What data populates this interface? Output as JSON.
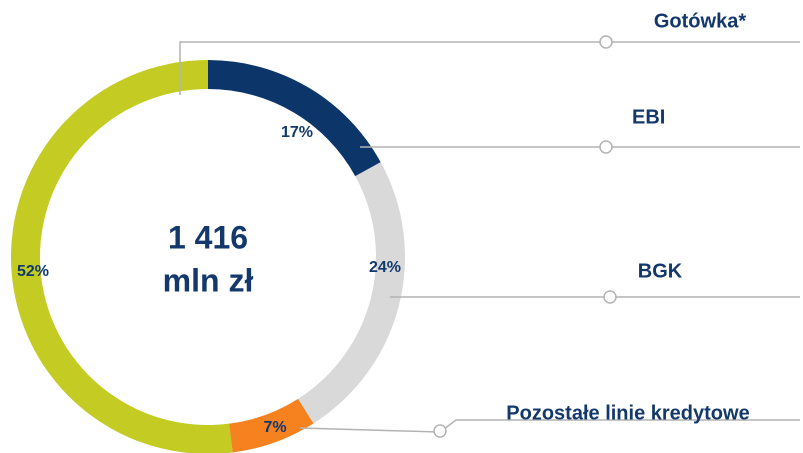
{
  "chart_data": {
    "type": "donut",
    "categories": [
      "EBI",
      "BGK",
      "Pozostałe linie kredytowe",
      "Gotówka*"
    ],
    "values": [
      17,
      24,
      7,
      52
    ],
    "value_labels": [
      "17%",
      "24%",
      "7%",
      "52%"
    ],
    "colors": [
      "#0c3569",
      "#d9d9d9",
      "#f5821f",
      "#c4cc24"
    ],
    "center_label": [
      "1 416",
      "mln zł"
    ]
  }
}
